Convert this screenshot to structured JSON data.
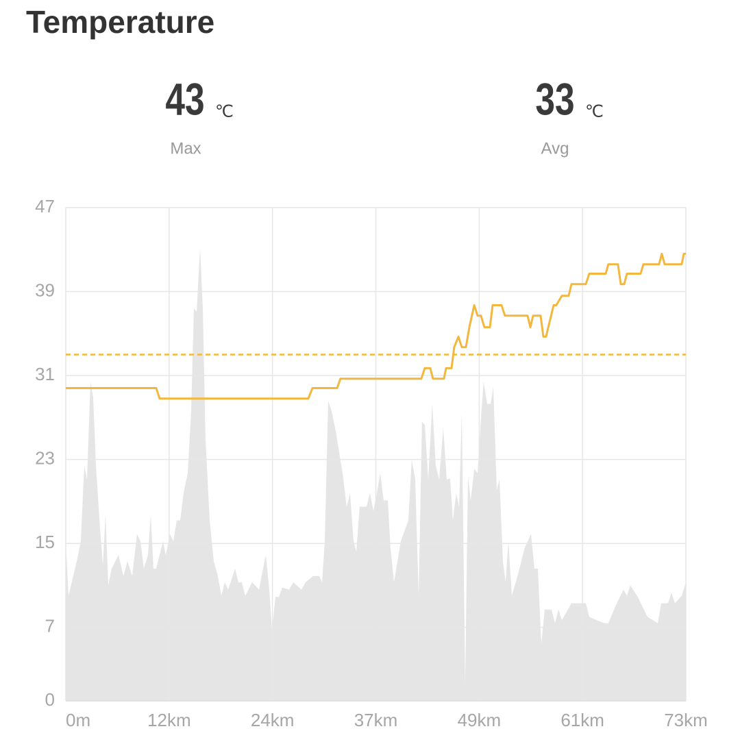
{
  "header": {
    "title": "Temperature"
  },
  "stats": [
    {
      "value": 43,
      "unit": "℃",
      "label": "Max"
    },
    {
      "value": 33,
      "unit": "℃",
      "label": "Avg"
    }
  ],
  "chart_data": {
    "type": "line",
    "xlim": [
      0,
      73
    ],
    "ylim": [
      0,
      47
    ],
    "xticks": [
      {
        "value": 0,
        "label": "0m"
      },
      {
        "value": 12.17,
        "label": "12km"
      },
      {
        "value": 24.33,
        "label": "24km"
      },
      {
        "value": 36.5,
        "label": "37km"
      },
      {
        "value": 48.67,
        "label": "49km"
      },
      {
        "value": 60.83,
        "label": "61km"
      },
      {
        "value": 73,
        "label": "73km"
      }
    ],
    "yticks": [
      0,
      7,
      15,
      23,
      31,
      39,
      47
    ],
    "grid": true,
    "series": [
      {
        "type": "area",
        "color": "#e5e5e5",
        "x": [
          0,
          0.32,
          1.29,
          1.77,
          2.18,
          2.5,
          2.9,
          3.23,
          3.55,
          4.03,
          4.36,
          4.68,
          5.0,
          5.4,
          6.21,
          6.78,
          7.26,
          7.82,
          8.39,
          8.79,
          9.19,
          9.68,
          10.0,
          10.32,
          10.65,
          11.45,
          11.78,
          12.26,
          12.66,
          13.07,
          13.47,
          13.87,
          14.36,
          14.76,
          15.08,
          15.41,
          15.81,
          16.13,
          16.45,
          16.94,
          17.42,
          17.91,
          18.31,
          18.71,
          19.12,
          19.92,
          20.33,
          20.73,
          21.13,
          21.94,
          22.75,
          23.15,
          23.55,
          23.96,
          24.28,
          24.68,
          25.09,
          25.49,
          26.3,
          26.78,
          27.75,
          28.23,
          29.12,
          29.84,
          30.17,
          30.49,
          30.89,
          31.3,
          31.78,
          32.18,
          32.59,
          33.07,
          33.47,
          33.88,
          34.2,
          34.6,
          35.41,
          35.81,
          36.22,
          36.62,
          37.02,
          37.42,
          37.91,
          38.23,
          38.64,
          39.44,
          40.33,
          40.73,
          41.14,
          41.54,
          41.94,
          42.27,
          42.67,
          43.15,
          43.56,
          43.96,
          44.44,
          44.85,
          45.25,
          45.57,
          45.97,
          46.3,
          46.62,
          47.02,
          47.35,
          47.67,
          48.08,
          48.48,
          48.88,
          49.2,
          49.61,
          50.01,
          50.33,
          50.74,
          51.06,
          51.46,
          51.78,
          52.11,
          52.51,
          53.32,
          54.04,
          54.77,
          55.17,
          55.58,
          55.98,
          56.38,
          57.19,
          57.59,
          58.0,
          58.4,
          59.53,
          61.22,
          61.63,
          62.43,
          63.4,
          63.88,
          64.69,
          65.66,
          66.06,
          66.46,
          67.27,
          68.48,
          69.69,
          70.09,
          70.9,
          71.3,
          71.71,
          72.51,
          73.0
        ],
        "values": [
          15.2,
          10.0,
          13.3,
          15.2,
          22.4,
          21.1,
          30.4,
          28.9,
          22.4,
          16.5,
          12.9,
          17.8,
          11.0,
          12.6,
          13.9,
          11.9,
          13.3,
          11.9,
          15.9,
          15.2,
          12.6,
          13.9,
          17.8,
          12.6,
          12.6,
          15.2,
          13.9,
          15.9,
          15.2,
          17.2,
          17.2,
          19.8,
          21.7,
          27.6,
          37.4,
          37.1,
          43.1,
          37.4,
          25.0,
          17.2,
          13.3,
          11.9,
          10.0,
          11.3,
          10.6,
          12.6,
          11.3,
          11.3,
          10.0,
          11.3,
          10.6,
          12.3,
          13.9,
          10.6,
          6.7,
          9.9,
          9.9,
          10.8,
          10.6,
          11.3,
          10.6,
          11.3,
          11.9,
          11.9,
          11.3,
          15.2,
          28.6,
          27.6,
          25.7,
          23.7,
          21.7,
          18.5,
          19.8,
          15.2,
          14.2,
          18.5,
          18.5,
          19.8,
          18.1,
          19.8,
          21.7,
          19.1,
          19.1,
          14.6,
          11.3,
          15.2,
          17.2,
          23.0,
          21.1,
          10.0,
          26.6,
          26.3,
          21.1,
          28.3,
          22.4,
          21.1,
          26.0,
          21.1,
          21.2,
          17.2,
          19.8,
          18.5,
          27.6,
          1.5,
          21.4,
          19.1,
          22.1,
          21.7,
          27.0,
          30.4,
          28.3,
          28.3,
          29.9,
          20.1,
          21.1,
          13.3,
          11.3,
          15.2,
          10.0,
          12.3,
          14.6,
          15.9,
          12.6,
          12.6,
          5.4,
          8.7,
          8.7,
          7.4,
          8.7,
          7.7,
          9.3,
          9.3,
          8.0,
          7.7,
          7.4,
          7.4,
          9.0,
          10.6,
          10.0,
          11.0,
          10.0,
          8.0,
          7.4,
          9.3,
          9.3,
          10.3,
          9.3,
          10.0,
          11.3
        ]
      },
      {
        "type": "line",
        "color": "#f4b73e",
        "x": [
          0,
          10.65,
          11.05,
          28.55,
          29.04,
          31.94,
          32.34,
          41.86,
          42.27,
          42.91,
          43.23,
          44.52,
          44.77,
          45.41,
          45.73,
          46.22,
          46.62,
          47.11,
          47.51,
          48.08,
          48.48,
          48.88,
          49.28,
          49.93,
          50.25,
          51.3,
          51.7,
          54.37,
          54.69,
          55.01,
          55.9,
          56.22,
          56.54,
          57.43,
          57.75,
          58.4,
          59.21,
          59.53,
          61.22,
          61.63,
          63.56,
          63.88,
          65.01,
          65.34,
          65.74,
          66.06,
          67.67,
          68.0,
          69.85,
          70.17,
          70.5,
          72.51,
          72.76,
          73
        ],
        "values": [
          29.8,
          29.8,
          28.8,
          28.8,
          29.8,
          29.8,
          30.7,
          30.7,
          31.7,
          31.7,
          30.7,
          30.7,
          31.7,
          31.7,
          33.7,
          34.7,
          33.7,
          33.7,
          35.6,
          37.7,
          36.7,
          36.7,
          35.6,
          35.6,
          37.7,
          37.7,
          36.7,
          36.7,
          35.6,
          36.7,
          36.7,
          34.7,
          34.7,
          37.7,
          37.7,
          38.6,
          38.6,
          39.7,
          39.7,
          40.7,
          40.7,
          41.6,
          41.6,
          39.7,
          39.7,
          40.7,
          40.7,
          41.6,
          41.6,
          42.6,
          41.6,
          41.6,
          42.6,
          42.6
        ]
      }
    ]
  }
}
